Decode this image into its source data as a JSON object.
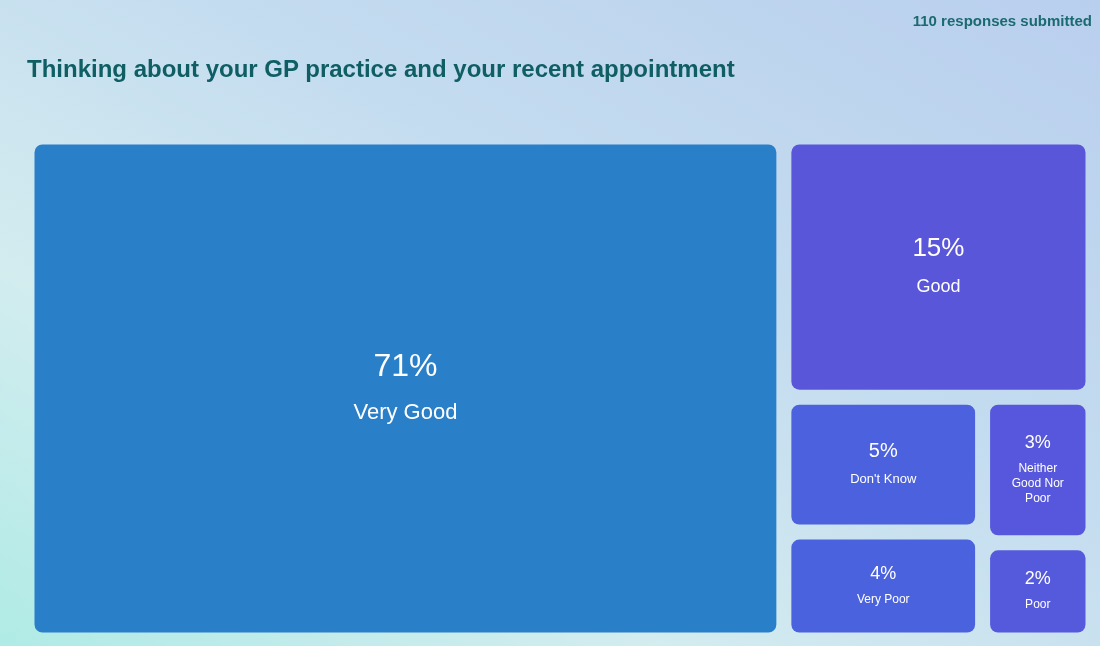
{
  "chart_data": {
    "type": "other",
    "title": "Thinking about your GP practice and your recent appointment",
    "annotations": [
      "110 responses submitted"
    ],
    "categories": [
      "Very Good",
      "Good",
      "Don't Know",
      "Very Poor",
      "Neither Good Nor Poor",
      "Poor"
    ],
    "values": [
      71,
      15,
      5,
      4,
      3,
      2
    ],
    "value_labels": [
      "71%",
      "15%",
      "5%",
      "4%",
      "3%",
      "2%"
    ],
    "colors": [
      "#2a7fc9",
      "#5a56da",
      "#4b61dd",
      "#4a62de",
      "#5657dc",
      "#5559dc"
    ]
  }
}
